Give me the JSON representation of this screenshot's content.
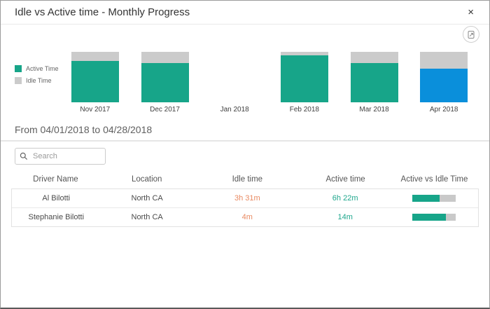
{
  "modal": {
    "title": "Idle vs Active time - Monthly Progress",
    "close_icon": "×"
  },
  "icons": {
    "export": "save-as-image-icon",
    "search": "magnifier-icon",
    "close": "x-icon"
  },
  "chart_data": {
    "type": "bar",
    "stacked": true,
    "normalized": "each month bar = 100% of month total",
    "categories": [
      "Nov 2017",
      "Dec 2017",
      "Jan 2018",
      "Feb 2018",
      "Mar 2018",
      "Apr 2018"
    ],
    "series": [
      {
        "name": "Active Time",
        "values": [
          82,
          78,
          0,
          93,
          78,
          67
        ],
        "color": "#17a589"
      },
      {
        "name": "Idle Time",
        "values": [
          18,
          22,
          0,
          7,
          22,
          33
        ],
        "color": "#cbcbcb"
      }
    ],
    "selected_category": "Apr 2018",
    "selected_color": "#0a8fdb",
    "legend_position": "left",
    "ylim": [
      0,
      100
    ],
    "title": "",
    "xlabel": "",
    "ylabel": ""
  },
  "date_range": {
    "text": "From 04/01/2018 to 04/28/2018"
  },
  "search": {
    "placeholder": "Search",
    "value": ""
  },
  "table": {
    "columns": [
      "Driver Name",
      "Location",
      "Idle time",
      "Active time",
      "Active vs Idle Time"
    ],
    "rows": [
      {
        "driver": "Al Bilotti",
        "location": "North CA",
        "idle_time": "3h 31m",
        "active_time": "6h 22m",
        "active_pct": 64
      },
      {
        "driver": "Stephanie Bilotti",
        "location": "North CA",
        "idle_time": "4m",
        "active_time": "14m",
        "active_pct": 78
      }
    ]
  },
  "colors": {
    "active_bar": "#17a589",
    "idle_bar": "#cbcbcb",
    "selected_bar": "#0a8fdb",
    "idle_text": "#e98a62",
    "active_text": "#1fa78d",
    "progress_track": "#c9c9c9"
  }
}
